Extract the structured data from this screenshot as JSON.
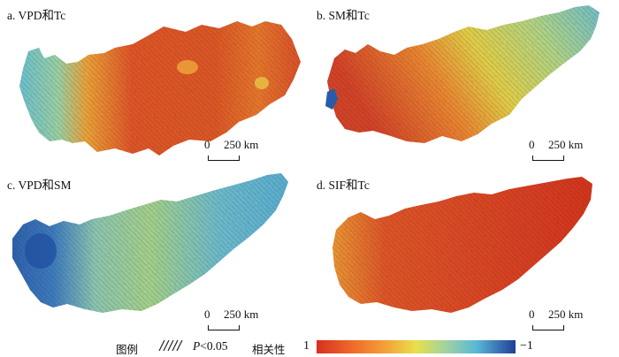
{
  "panels": [
    {
      "id": "a",
      "title": "a. VPD和Tc"
    },
    {
      "id": "b",
      "title": "b. SM和Tc"
    },
    {
      "id": "c",
      "title": "c. VPD和SM"
    },
    {
      "id": "d",
      "title": "d. SIF和Tc"
    }
  ],
  "scalebar": {
    "zero": "0",
    "distance": "250 km"
  },
  "legend": {
    "title": "图例",
    "significance_prefix": "P",
    "significance_suffix": "<0.05",
    "correlation_label": "相关性",
    "max_label": "1",
    "min_label": "−1"
  },
  "colors": {
    "high": "#d7301f",
    "orange": "#f4a23a",
    "yellow": "#e8e04a",
    "cyan": "#6ec5d3",
    "blue": "#1f3f99"
  }
}
